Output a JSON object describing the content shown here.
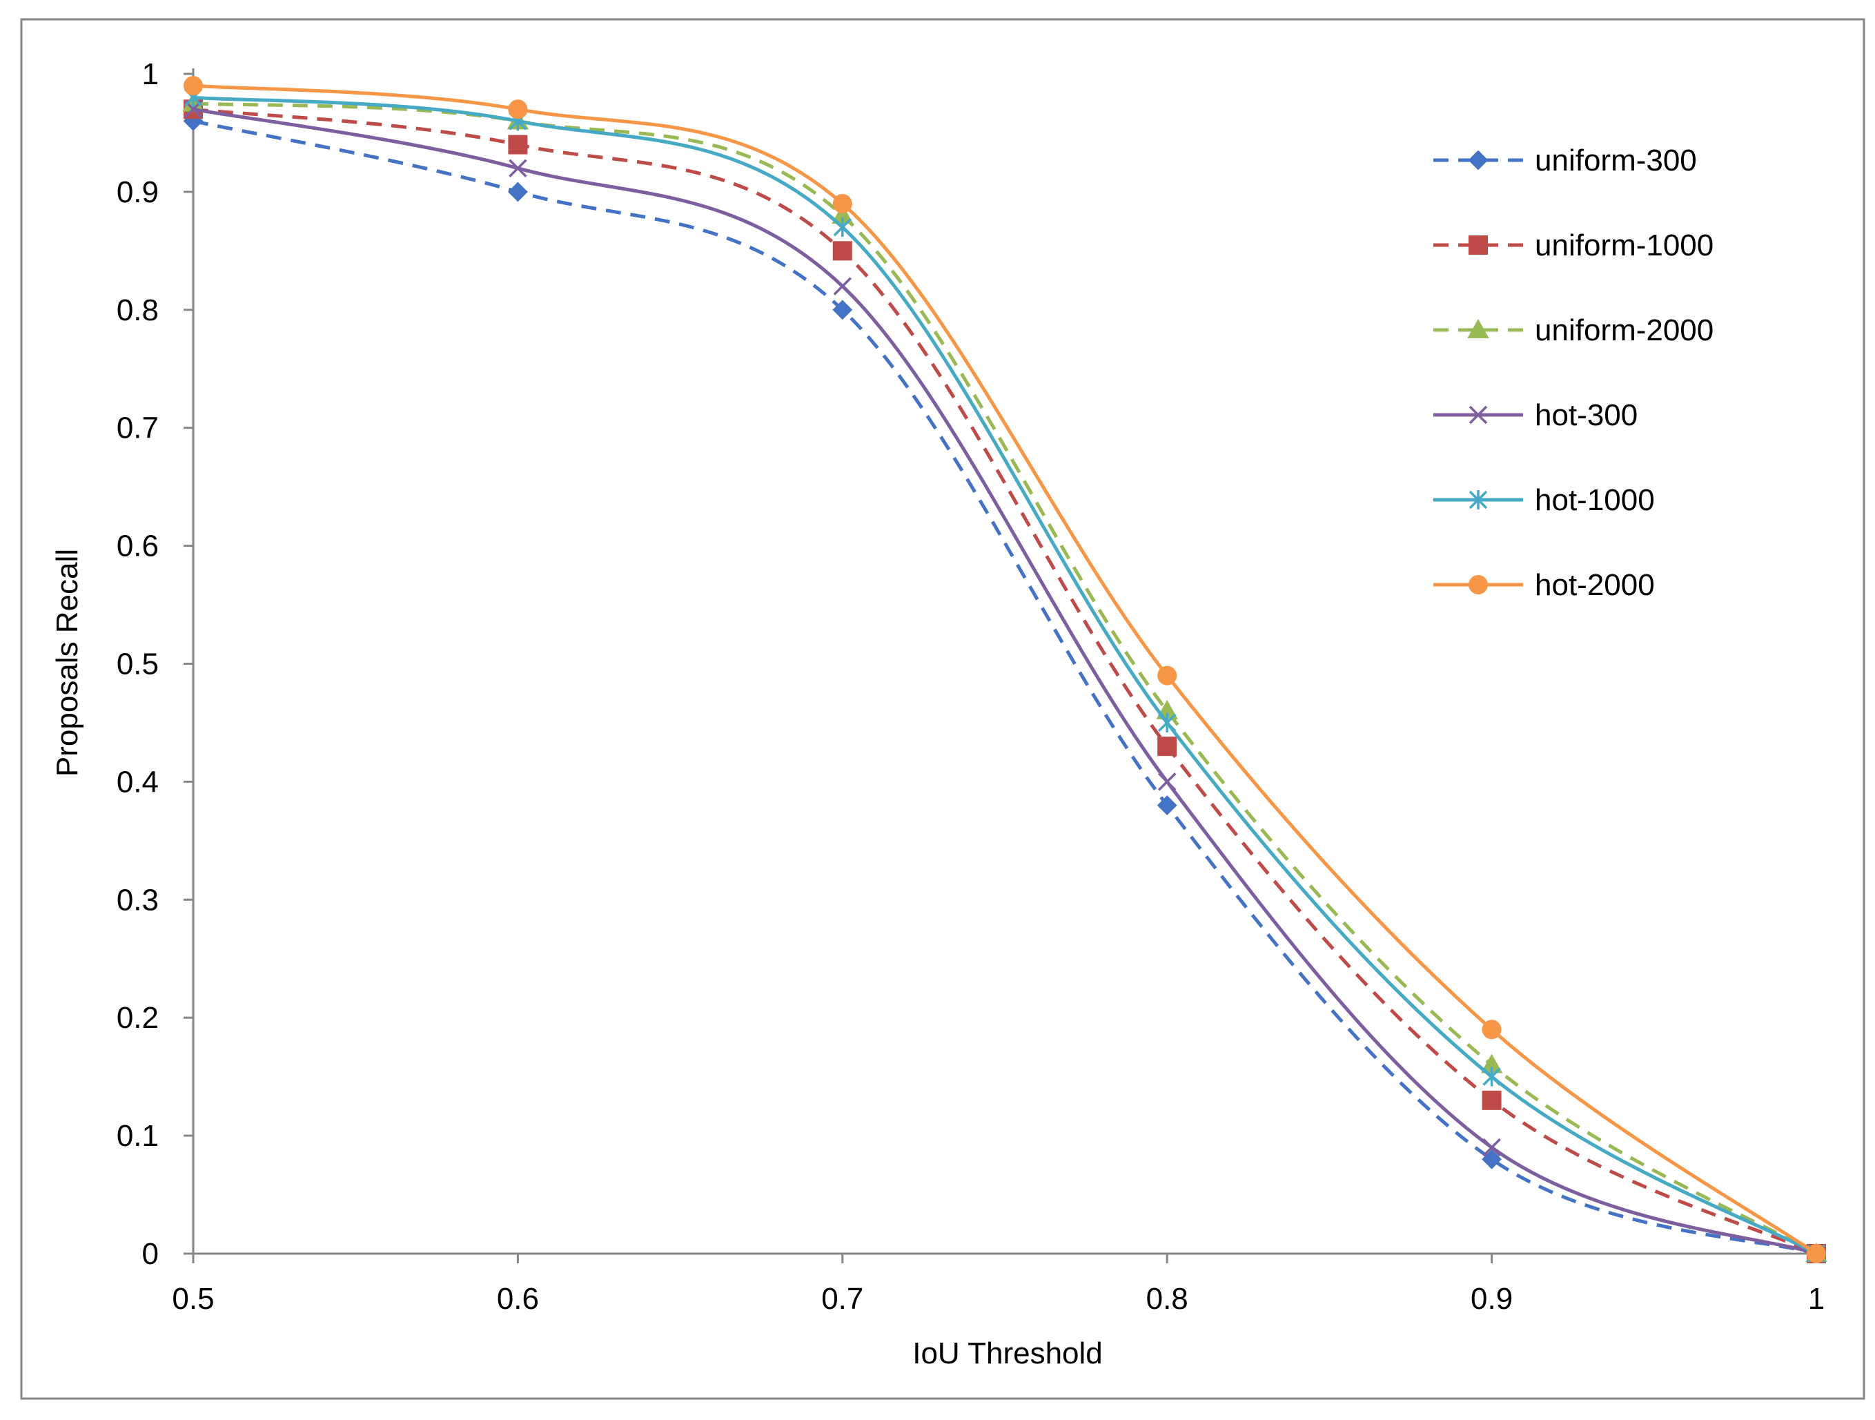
{
  "chart_data": {
    "type": "line",
    "title": "",
    "xlabel": "IoU Threshold",
    "ylabel": "Proposals Recall",
    "x": [
      0.5,
      0.6,
      0.7,
      0.8,
      0.9,
      1
    ],
    "x_tick_labels": [
      "0.5",
      "0.6",
      "0.7",
      "0.8",
      "0.9",
      "1"
    ],
    "y_tick_labels": [
      "0",
      "0.1",
      "0.2",
      "0.3",
      "0.4",
      "0.5",
      "0.6",
      "0.7",
      "0.8",
      "0.9",
      "1"
    ],
    "xlim": [
      0.5,
      1
    ],
    "ylim": [
      0,
      1
    ],
    "grid": false,
    "legend_position": "top-right",
    "smooth": true,
    "series": [
      {
        "name": "uniform-300",
        "values": [
          0.96,
          0.9,
          0.8,
          0.38,
          0.08,
          0.0
        ],
        "color": "#4472C4",
        "dash": true,
        "marker": "diamond"
      },
      {
        "name": "uniform-1000",
        "values": [
          0.97,
          0.94,
          0.85,
          0.43,
          0.13,
          0.0
        ],
        "color": "#BE4B48",
        "dash": true,
        "marker": "square"
      },
      {
        "name": "uniform-2000",
        "values": [
          0.975,
          0.96,
          0.88,
          0.46,
          0.16,
          0.0
        ],
        "color": "#98B954",
        "dash": true,
        "marker": "triangle"
      },
      {
        "name": "hot-300",
        "values": [
          0.97,
          0.92,
          0.82,
          0.4,
          0.09,
          0.0
        ],
        "color": "#7D5FA0",
        "dash": false,
        "marker": "x"
      },
      {
        "name": "hot-1000",
        "values": [
          0.98,
          0.96,
          0.87,
          0.45,
          0.15,
          0.0
        ],
        "color": "#46AAC5",
        "dash": false,
        "marker": "star"
      },
      {
        "name": "hot-2000",
        "values": [
          0.99,
          0.97,
          0.89,
          0.49,
          0.19,
          0.0
        ],
        "color": "#F79646",
        "dash": false,
        "marker": "circle"
      }
    ]
  }
}
